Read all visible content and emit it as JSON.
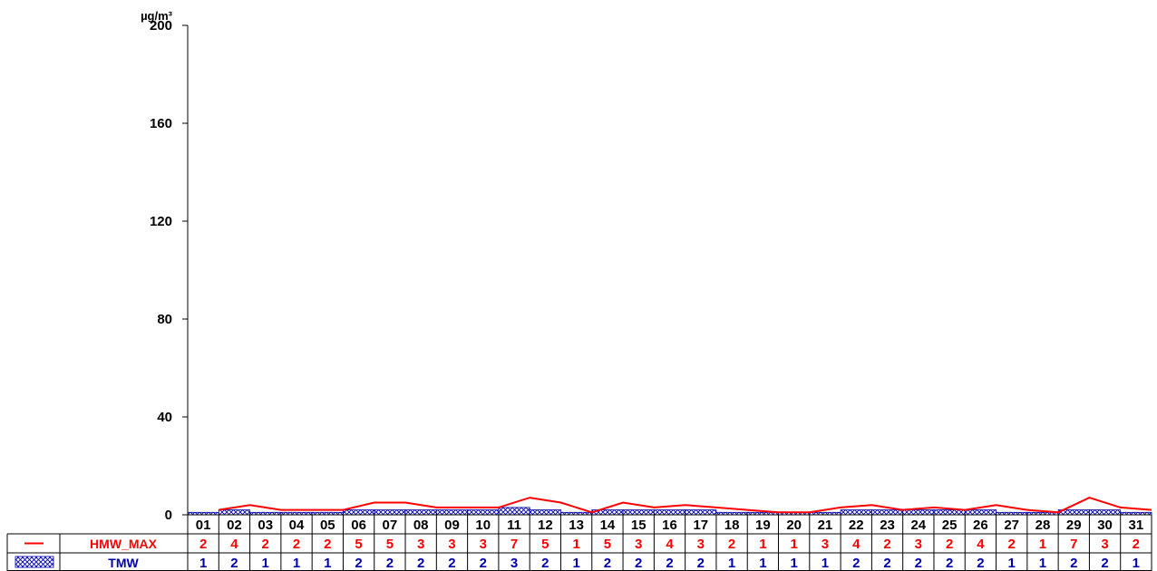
{
  "chart_data": {
    "type": "line",
    "unit": "µg/m³",
    "ylim": [
      0,
      200
    ],
    "yticks": [
      0,
      40,
      80,
      120,
      160,
      200
    ],
    "categories": [
      "01",
      "02",
      "03",
      "04",
      "05",
      "06",
      "07",
      "08",
      "09",
      "10",
      "11",
      "12",
      "13",
      "14",
      "15",
      "16",
      "17",
      "18",
      "19",
      "20",
      "21",
      "22",
      "23",
      "24",
      "25",
      "26",
      "27",
      "28",
      "29",
      "30",
      "31"
    ],
    "series": [
      {
        "name": "HMW_MAX",
        "kind": "line",
        "color": "#ff0000",
        "values": [
          2,
          4,
          2,
          2,
          2,
          5,
          5,
          3,
          3,
          3,
          7,
          5,
          1,
          5,
          3,
          4,
          3,
          2,
          1,
          1,
          3,
          4,
          2,
          3,
          2,
          4,
          2,
          1,
          7,
          3,
          2
        ]
      },
      {
        "name": "TMW",
        "kind": "bar",
        "color": "#0000aa",
        "values": [
          1,
          2,
          1,
          1,
          1,
          2,
          2,
          2,
          2,
          2,
          3,
          2,
          1,
          2,
          2,
          2,
          2,
          1,
          1,
          1,
          1,
          2,
          2,
          2,
          2,
          2,
          1,
          1,
          2,
          2,
          1
        ]
      }
    ],
    "grid": false,
    "legend": "table-below"
  }
}
